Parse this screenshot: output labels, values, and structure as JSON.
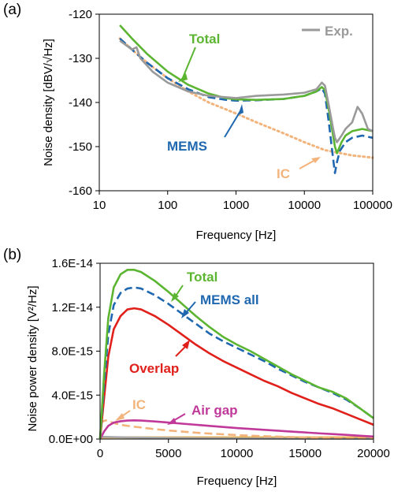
{
  "colors": {
    "exp": "#9a9a9a",
    "total": "#5bb531",
    "mems": "#1f68b0",
    "ic": "#f2b47c",
    "overlap": "#e0201b",
    "airgap": "#c0389a",
    "other_gray": "#a8a8a8",
    "ic_flat": "#e8a93a"
  },
  "chart_data": [
    {
      "type": "line",
      "panel_label": "(a)",
      "xlabel": "Frequency [Hz]",
      "ylabel": "Noise density [dBV/√Hz]",
      "xscale": "log",
      "xlim": [
        10,
        100000
      ],
      "ylim": [
        -160,
        -120
      ],
      "xticks": [
        10,
        100,
        1000,
        10000,
        100000
      ],
      "xtick_labels": [
        "10",
        "100",
        "1000",
        "10000",
        "100000"
      ],
      "yticks": [
        -160,
        -150,
        -140,
        -130,
        -120
      ],
      "ytick_labels": [
        "-160",
        "-150",
        "-140",
        "-130",
        "-120"
      ],
      "grid": false,
      "legend": "top-right",
      "series": [
        {
          "name": "Exp.",
          "style": "solid",
          "color_key": "exp",
          "x": [
            20,
            30,
            35,
            40,
            60,
            100,
            200,
            400,
            700,
            1000,
            2000,
            5000,
            10000,
            15000,
            18000,
            20000,
            23000,
            26000,
            28000,
            30000,
            35000,
            40000,
            50000,
            60000,
            70000,
            85000,
            100000
          ],
          "y": [
            -126,
            -128,
            -127.5,
            -130,
            -133,
            -135.5,
            -137.5,
            -138.5,
            -138.8,
            -139,
            -138.5,
            -138.2,
            -137.8,
            -137,
            -135.5,
            -136.2,
            -141,
            -145.5,
            -148,
            -149,
            -147.5,
            -146,
            -144.5,
            -141,
            -142.5,
            -146,
            -146.5
          ]
        },
        {
          "name": "Total",
          "style": "solid",
          "color_key": "total",
          "x": [
            20,
            30,
            50,
            100,
            200,
            400,
            700,
            1000,
            2000,
            5000,
            10000,
            15000,
            18000,
            20000,
            23000,
            26000,
            28000,
            30000,
            35000,
            40000,
            50000,
            70000,
            100000
          ],
          "y": [
            -122.5,
            -125.5,
            -129,
            -133,
            -136,
            -138,
            -139,
            -139.3,
            -139.4,
            -139.2,
            -138.5,
            -137.5,
            -136.5,
            -137.2,
            -142,
            -147,
            -150,
            -151.5,
            -149,
            -147.5,
            -146.5,
            -146,
            -146.5
          ]
        },
        {
          "name": "MEMS",
          "style": "dashed",
          "color_key": "mems",
          "x": [
            20,
            30,
            50,
            100,
            200,
            400,
            700,
            1000,
            2000,
            5000,
            10000,
            15000,
            18000,
            20000,
            23000,
            26000,
            28000,
            30000,
            33000,
            40000,
            50000,
            70000,
            100000
          ],
          "y": [
            -125.5,
            -128,
            -131,
            -134.5,
            -137,
            -138.8,
            -139.4,
            -139.6,
            -139.5,
            -139.2,
            -138.5,
            -137.5,
            -136.8,
            -138,
            -145,
            -152,
            -156,
            -153.5,
            -151,
            -149,
            -148,
            -147.5,
            -148
          ]
        },
        {
          "name": "IC",
          "style": "dotted",
          "color_key": "ic",
          "x": [
            20,
            30,
            50,
            100,
            200,
            400,
            1000,
            2000,
            5000,
            10000,
            20000,
            50000,
            100000
          ],
          "y": [
            -125.5,
            -128,
            -131,
            -134.5,
            -137.5,
            -140,
            -142.5,
            -144.5,
            -147,
            -149,
            -150.8,
            -152,
            -152.5
          ]
        }
      ],
      "annotations": [
        {
          "text": "Total",
          "color_key": "total"
        },
        {
          "text": "MEMS",
          "color_key": "mems"
        },
        {
          "text": "IC",
          "color_key": "ic"
        },
        {
          "text": "Exp.",
          "color_key": "exp"
        }
      ]
    },
    {
      "type": "line",
      "panel_label": "(b)",
      "xlabel": "Frequency [Hz]",
      "ylabel": "Noise power density [V²/Hz]",
      "xlim": [
        0,
        20000
      ],
      "ylim": [
        0,
        1.6e-14
      ],
      "xticks": [
        0,
        5000,
        10000,
        15000,
        20000
      ],
      "xtick_labels": [
        "0",
        "5000",
        "10000",
        "15000",
        "20000"
      ],
      "yticks": [
        0,
        4e-15,
        8e-15,
        1.2e-14,
        1.6e-14
      ],
      "ytick_labels": [
        "0.0E+00",
        "4.0E-15",
        "8.0E-15",
        "1.2E-14",
        "1.6E-14"
      ],
      "grid": false,
      "series": [
        {
          "name": "Total",
          "style": "solid",
          "color_key": "total",
          "x": [
            0,
            300,
            600,
            1000,
            1500,
            2000,
            2500,
            3000,
            4000,
            5000,
            6000,
            7000,
            8000,
            9000,
            10000,
            11000,
            12000,
            13000,
            14000,
            15000,
            16000,
            17000,
            18000,
            19000,
            20000
          ],
          "y": [
            0,
            6e-15,
            1.1e-14,
            1.38e-14,
            1.5e-14,
            1.54e-14,
            1.54e-14,
            1.52e-14,
            1.44e-14,
            1.34e-14,
            1.23e-14,
            1.12e-14,
            1.02e-14,
            9.3e-15,
            8.6e-15,
            8e-15,
            7.3e-15,
            6.6e-15,
            5.9e-15,
            5.3e-15,
            4.7e-15,
            4.3e-15,
            3.7e-15,
            2.8e-15,
            1.9e-15
          ]
        },
        {
          "name": "MEMS all",
          "style": "dashed",
          "color_key": "mems",
          "x": [
            0,
            300,
            600,
            1000,
            1500,
            2000,
            2500,
            3000,
            4000,
            5000,
            6000,
            7000,
            8000,
            9000,
            10000,
            11000,
            12000,
            13000,
            14000,
            15000,
            16000,
            17000,
            18000,
            19000,
            20000
          ],
          "y": [
            0,
            5e-15,
            9.5e-15,
            1.22e-14,
            1.33e-14,
            1.37e-14,
            1.38e-14,
            1.37e-14,
            1.31e-14,
            1.23e-14,
            1.14e-14,
            1.05e-14,
            9.6e-15,
            8.9e-15,
            8.3e-15,
            7.7e-15,
            7.1e-15,
            6.4e-15,
            5.8e-15,
            5.2e-15,
            4.7e-15,
            4.2e-15,
            3.6e-15,
            2.8e-15,
            1.9e-15
          ]
        },
        {
          "name": "Overlap",
          "style": "solid",
          "color_key": "overlap",
          "x": [
            0,
            300,
            600,
            1000,
            1500,
            2000,
            2500,
            3000,
            4000,
            5000,
            6000,
            7000,
            8000,
            9000,
            10000,
            11000,
            12000,
            13000,
            14000,
            15000,
            16000,
            17000,
            18000,
            19000,
            20000
          ],
          "y": [
            0,
            3.8e-15,
            7.5e-15,
            1e-14,
            1.12e-14,
            1.18e-14,
            1.19e-14,
            1.18e-14,
            1.12e-14,
            1.04e-14,
            9.5e-15,
            8.6e-15,
            7.8e-15,
            7.1e-15,
            6.5e-15,
            5.9e-15,
            5.3e-15,
            4.8e-15,
            4.2e-15,
            3.7e-15,
            3.2e-15,
            2.8e-15,
            2.3e-15,
            1.8e-15,
            1.3e-15
          ]
        },
        {
          "name": "Air gap",
          "style": "solid",
          "color_key": "airgap",
          "x": [
            0,
            300,
            600,
            1000,
            1500,
            2000,
            2500,
            3000,
            4000,
            5000,
            6000,
            7000,
            8000,
            9000,
            10000,
            11000,
            12000,
            13000,
            14000,
            15000,
            16000,
            17000,
            18000,
            19000,
            20000
          ],
          "y": [
            0,
            7e-16,
            1.2e-15,
            1.5e-15,
            1.62e-15,
            1.68e-15,
            1.7e-15,
            1.68e-15,
            1.6e-15,
            1.5e-15,
            1.4e-15,
            1.3e-15,
            1.2e-15,
            1.1e-15,
            1e-15,
            9.2e-16,
            8.4e-16,
            7.6e-16,
            6.8e-16,
            6e-16,
            5.2e-16,
            4.5e-16,
            3.8e-16,
            3e-16,
            2.3e-16
          ]
        },
        {
          "name": "IC",
          "style": "dashed",
          "color_key": "ic",
          "x": [
            0,
            200,
            400,
            700,
            1000,
            1500,
            2000,
            3000,
            4000,
            5000,
            6000,
            7000,
            8000,
            9000,
            10000,
            12000,
            14000,
            16000,
            18000,
            20000
          ],
          "y": [
            1.4e-15,
            1.6e-15,
            1.7e-15,
            1.6e-15,
            1.45e-15,
            1.3e-15,
            1.2e-15,
            1.05e-15,
            9e-16,
            7.8e-16,
            6.8e-16,
            5.8e-16,
            5e-16,
            4.3e-16,
            3.6e-16,
            2.6e-16,
            1.8e-16,
            1.2e-16,
            8e-17,
            5e-17
          ]
        },
        {
          "name": "",
          "style": "solid",
          "color_key": "other_gray",
          "x": [
            0,
            2000,
            5000,
            10000,
            15000,
            20000
          ],
          "y": [
            2e-16,
            1.5e-16,
            1e-16,
            6e-17,
            4e-17,
            3e-17
          ]
        },
        {
          "name": "",
          "style": "solid",
          "color_key": "ic_flat",
          "x": [
            0,
            5000,
            10000,
            15000,
            20000
          ],
          "y": [
            1.5e-16,
            1.5e-16,
            1.5e-16,
            1.5e-16,
            1.5e-16
          ]
        }
      ],
      "annotations": [
        {
          "text": "Total",
          "color_key": "total"
        },
        {
          "text": "MEMS all",
          "color_key": "mems"
        },
        {
          "text": "Overlap",
          "color_key": "overlap"
        },
        {
          "text": "IC",
          "color_key": "ic"
        },
        {
          "text": "Air gap",
          "color_key": "airgap"
        }
      ]
    }
  ]
}
